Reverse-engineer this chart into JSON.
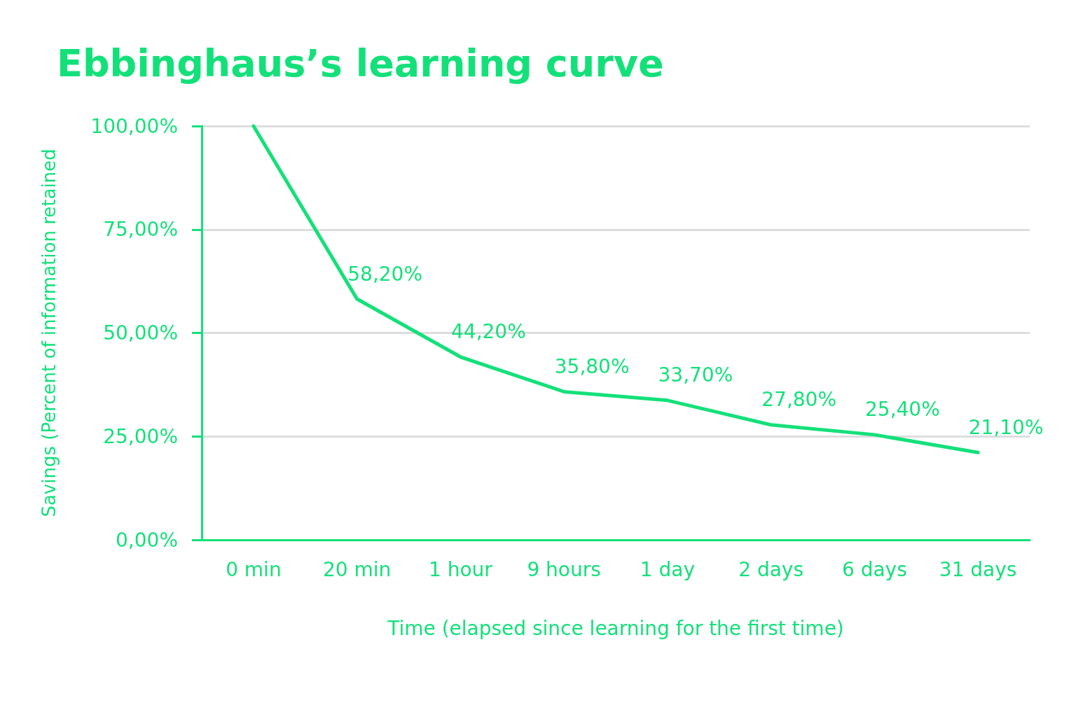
{
  "chart_data": {
    "type": "line",
    "title": "Ebbinghaus’s learning curve",
    "xlabel": "Time (elapsed since learning for the first time)",
    "ylabel": "Savings (Percent of information retained",
    "categories": [
      "0 min",
      "20 min",
      "1 hour",
      "9 hours",
      "1 day",
      "2 days",
      "6 days",
      "31 days"
    ],
    "series": [
      {
        "color": "#14e07a",
        "values": [
          100,
          58.2,
          44.2,
          35.8,
          33.7,
          27.8,
          25.4,
          21.1
        ],
        "value_labels": [
          null,
          "58,20%",
          "44,20%",
          "35,80%",
          "33,70%",
          "27,80%",
          "25,40%",
          "21,10%"
        ]
      }
    ],
    "ylim": [
      0,
      100
    ],
    "yticks": [
      {
        "value": 0,
        "label": "0,00%"
      },
      {
        "value": 25,
        "label": "25,00%"
      },
      {
        "value": 50,
        "label": "50,00%"
      },
      {
        "value": 75,
        "label": "75,00%"
      },
      {
        "value": 100,
        "label": "100,00%"
      }
    ],
    "grid": "y",
    "marker": "none",
    "line_style": "solid"
  }
}
